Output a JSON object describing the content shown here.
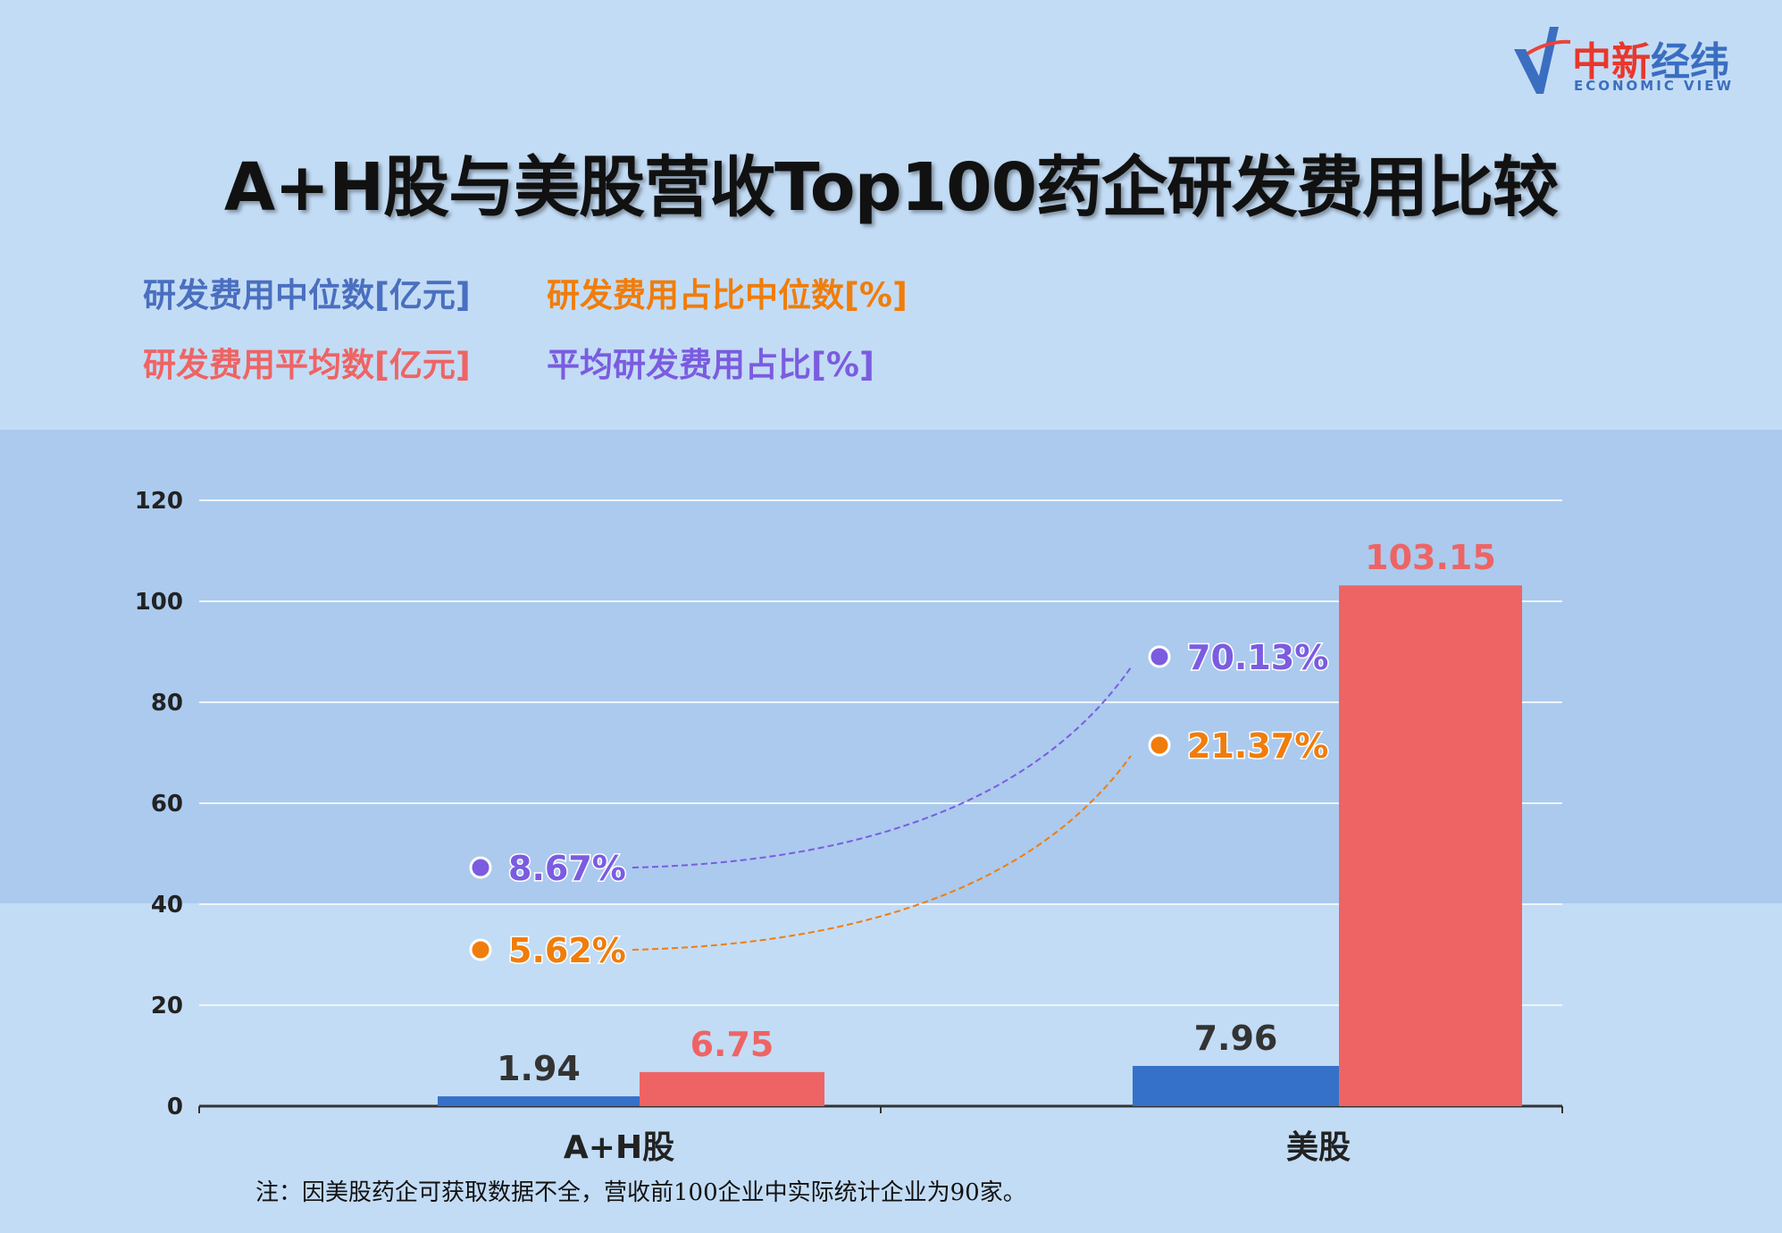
{
  "title": "A+H股与美股营收Top100药企研发费用比较",
  "logo": {
    "cn_red": "中新",
    "cn_blue": "经纬",
    "en": "ECONOMIC VIEW"
  },
  "note": "注：因美股药企可获取数据不全，营收前100企业中实际统计企业为90家。",
  "colors": {
    "median_bar": "#3571c8",
    "mean_bar": "#ee6464",
    "median_pct": "#f07d0b",
    "mean_pct": "#7b5ce0",
    "legend_median": "#4a6fc0"
  },
  "chart_data": {
    "type": "bar",
    "categories": [
      "A+H股",
      "美股"
    ],
    "ylim": [
      0,
      120
    ],
    "yticks": [
      "0",
      "20",
      "40",
      "60",
      "80",
      "100",
      "120"
    ],
    "grid": true,
    "legend_placement": "top-left",
    "series": [
      {
        "name": "研发费用中位数[亿元]",
        "values": [
          1.94,
          7.96
        ],
        "labels": [
          "1.94",
          "7.96"
        ]
      },
      {
        "name": "研发费用平均数[亿元]",
        "values": [
          6.75,
          103.15
        ],
        "labels": [
          "6.75",
          "103.15"
        ]
      }
    ],
    "pct_series": [
      {
        "name": "研发费用占比中位数[%]",
        "values": [
          5.62,
          21.37
        ],
        "labels": [
          "5.62%",
          "21.37%"
        ]
      },
      {
        "name": "平均研发费用占比[%]",
        "values": [
          8.67,
          70.13
        ],
        "labels": [
          "8.67%",
          "70.13%"
        ]
      }
    ]
  }
}
